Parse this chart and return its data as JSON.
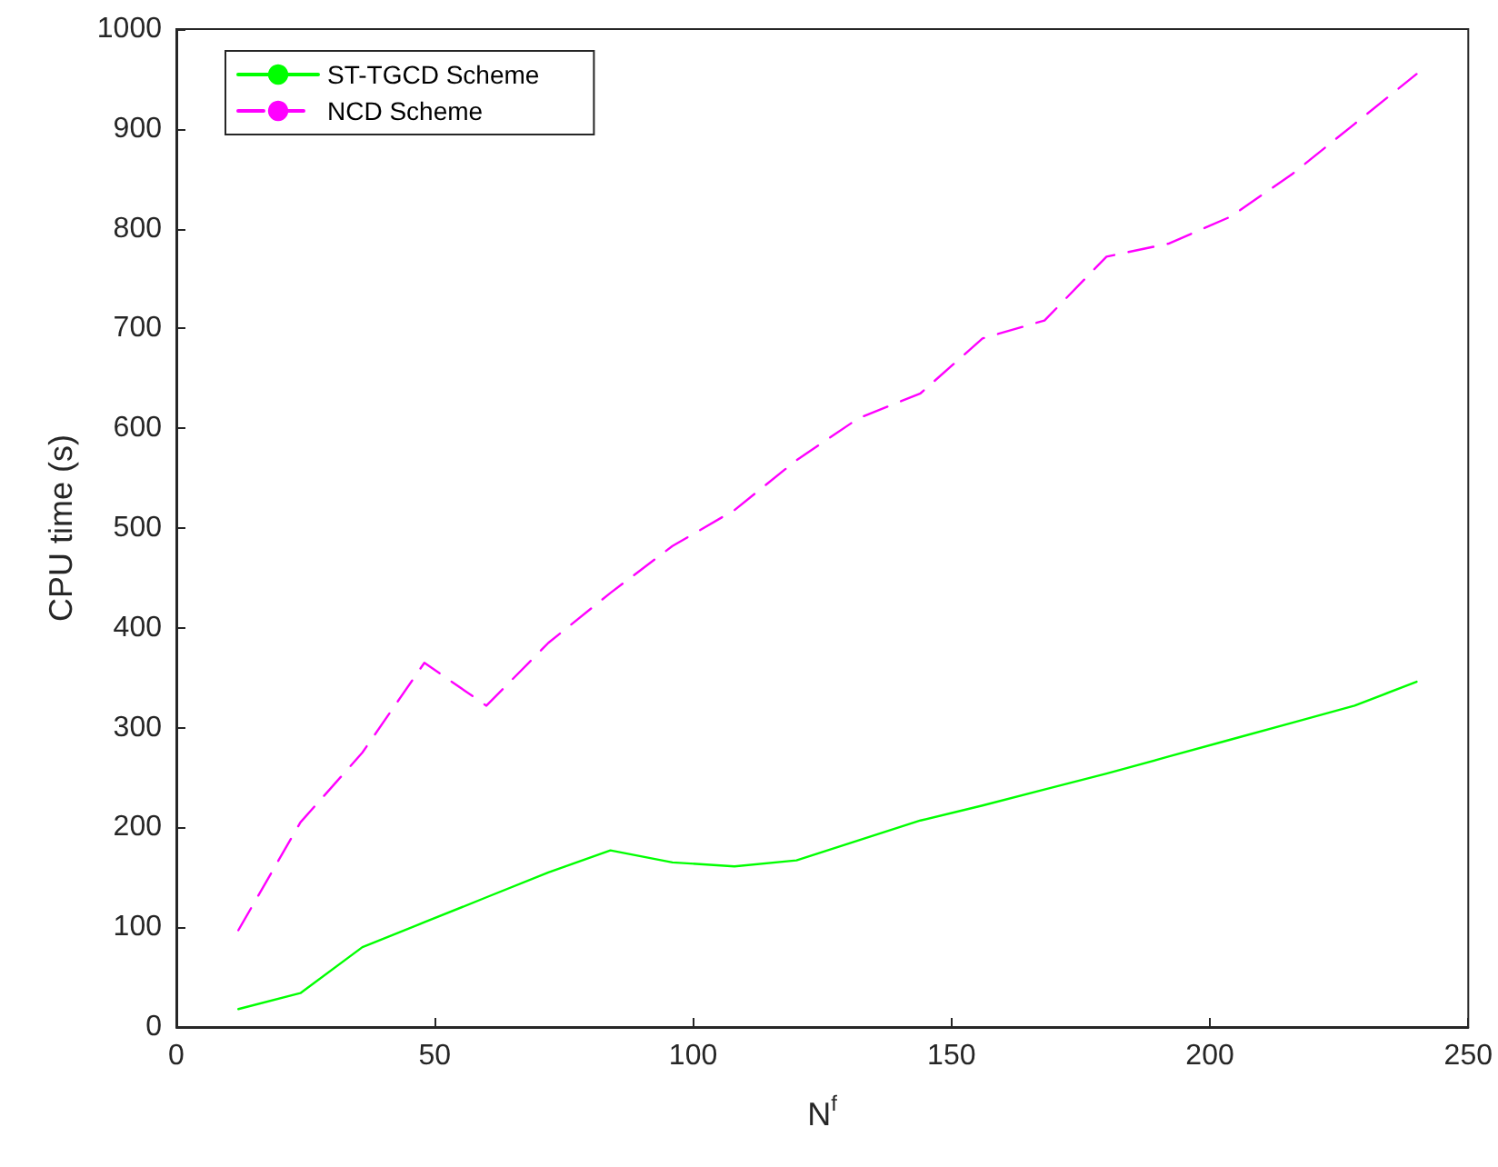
{
  "chart_data": {
    "type": "line",
    "xlabel": "N$^{f}$",
    "ylabel": "CPU time (s)",
    "x": [
      12,
      24,
      36,
      48,
      60,
      72,
      84,
      96,
      108,
      120,
      132,
      144,
      156,
      168,
      180,
      192,
      204,
      216,
      228,
      240
    ],
    "series": [
      {
        "name": "ST-TGCD Scheme",
        "color": "#00ff00",
        "line_style": "solid",
        "values": [
          18,
          34,
          80,
          105,
          130,
          155,
          177,
          165,
          161,
          167,
          187,
          207,
          222,
          238,
          254,
          271,
          288,
          305,
          322,
          346
        ]
      },
      {
        "name": "NCD Scheme",
        "color": "#ff00ff",
        "line_style": "dashed",
        "values": [
          97,
          205,
          275,
          365,
          322,
          385,
          435,
          482,
          518,
          568,
          610,
          635,
          690,
          708,
          772,
          785,
          812,
          855,
          905,
          955
        ]
      }
    ],
    "xlim": [
      0,
      250
    ],
    "xticks": [
      0,
      50,
      100,
      150,
      200,
      250
    ],
    "ylim": [
      0,
      1000
    ],
    "yticks": [
      0,
      100,
      200,
      300,
      400,
      500,
      600,
      700,
      800,
      900,
      1000
    ],
    "grid": false,
    "legend": "top left",
    "marker": "none"
  }
}
